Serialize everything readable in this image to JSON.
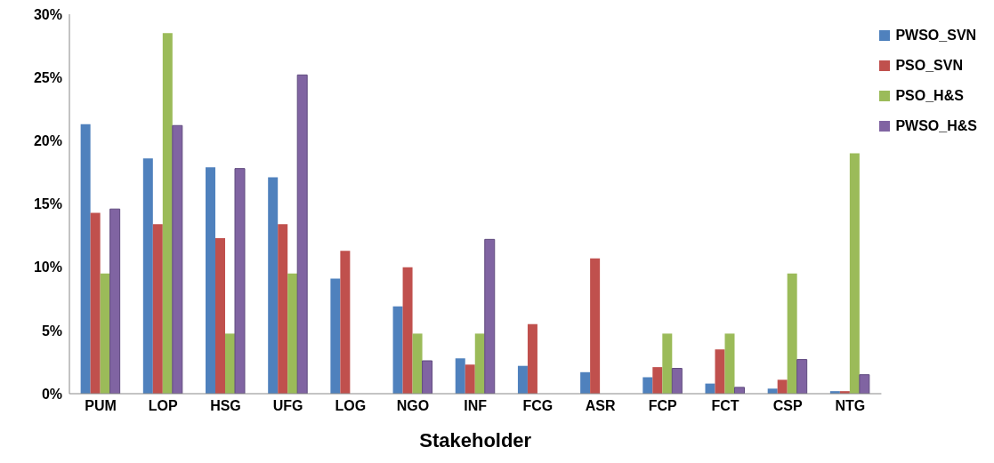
{
  "chart_data": {
    "type": "bar",
    "xlabel": "Stakeholder",
    "categories": [
      "PUM",
      "LOP",
      "HSG",
      "UFG",
      "LOG",
      "NGO",
      "INF",
      "FCG",
      "ASR",
      "FCP",
      "FCT",
      "CSP",
      "NTG"
    ],
    "series": [
      {
        "name": "PWSO_SVN",
        "color": "#4f81bd",
        "values": [
          21.3,
          18.6,
          17.9,
          17.1,
          9.1,
          6.9,
          2.8,
          2.2,
          1.7,
          1.3,
          0.8,
          0.4,
          0.2
        ]
      },
      {
        "name": "PSO_SVN",
        "color": "#c0504d",
        "values": [
          14.3,
          13.4,
          12.3,
          13.4,
          11.3,
          10.0,
          2.3,
          5.5,
          10.7,
          2.1,
          3.5,
          1.1,
          0.2
        ]
      },
      {
        "name": "PSO_H&S",
        "color": "#9bbb59",
        "values": [
          9.5,
          28.5,
          4.75,
          9.5,
          0,
          4.75,
          4.75,
          0,
          0,
          4.75,
          4.75,
          9.5,
          19.0
        ]
      },
      {
        "name": "PWSO_H&S",
        "color": "#8064a2",
        "values": [
          14.6,
          21.2,
          17.8,
          25.2,
          0,
          2.6,
          12.2,
          0,
          0,
          2.0,
          0.5,
          2.7,
          1.5
        ]
      }
    ],
    "ylim": [
      0,
      30
    ],
    "yticks": [
      {
        "value": 0,
        "label": "0%"
      },
      {
        "value": 5,
        "label": "5%"
      },
      {
        "value": 10,
        "label": "10%"
      },
      {
        "value": 15,
        "label": "15%"
      },
      {
        "value": 20,
        "label": "20%"
      },
      {
        "value": 25,
        "label": "25%"
      },
      {
        "value": 30,
        "label": "30%"
      }
    ],
    "grid": false,
    "legend": "top right"
  }
}
